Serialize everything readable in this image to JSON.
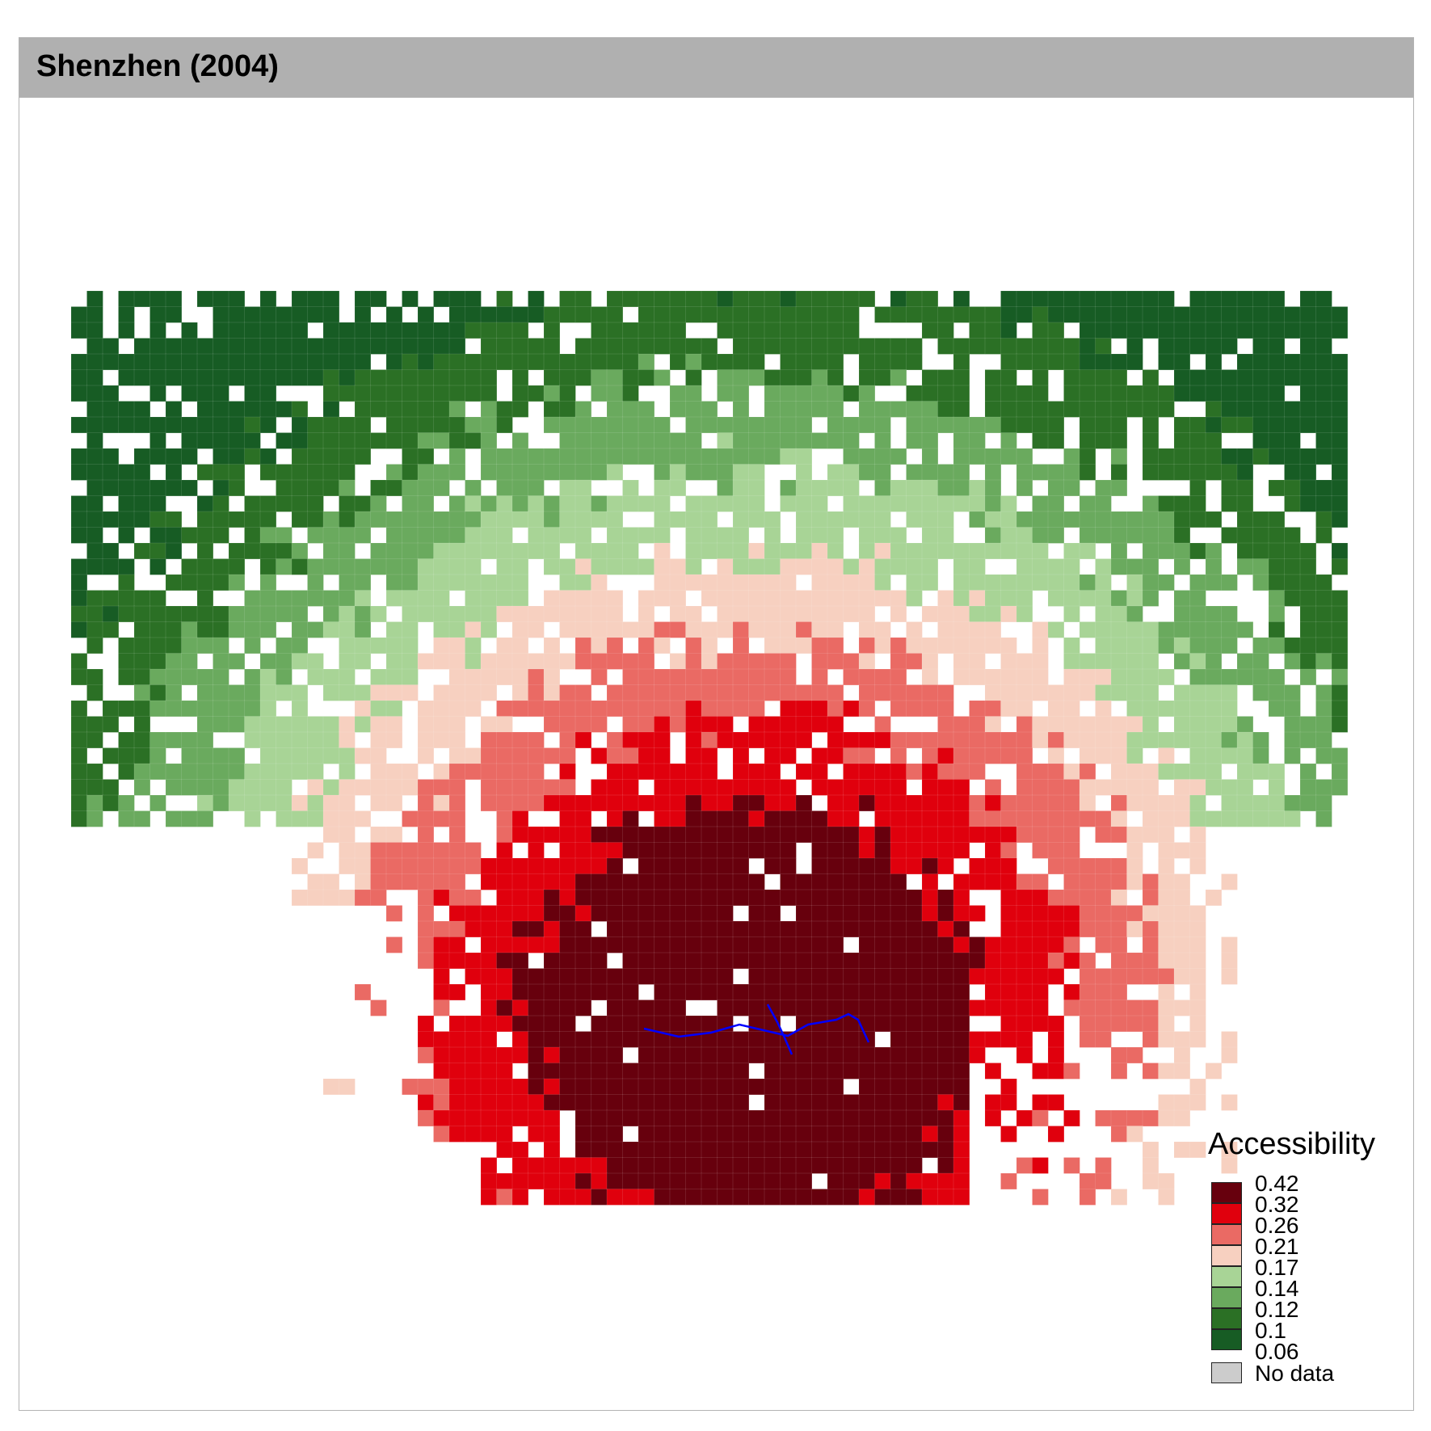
{
  "title": "Shenzhen (2004)",
  "legend": {
    "title": "Accessibility",
    "breaks": [
      "0.42",
      "0.32",
      "0.26",
      "0.21",
      "0.17",
      "0.14",
      "0.12",
      "0.1",
      "0.06"
    ],
    "colors": [
      "#67000d",
      "#e0000d",
      "#ea6a64",
      "#f7d0c0",
      "#a8d496",
      "#6aaa5e",
      "#2b7025",
      "#175c24"
    ],
    "no_data_label": "No data",
    "no_data_color": "#cccccc"
  },
  "route_color": "#0000ff"
}
